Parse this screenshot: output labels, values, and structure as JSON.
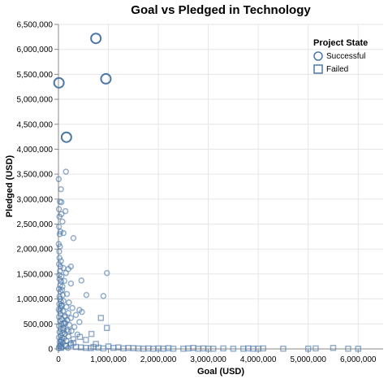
{
  "chart_data": {
    "type": "scatter",
    "title": "Goal vs Pledged in Technology",
    "xlabel": "Goal (USD)",
    "ylabel": "Pledged (USD)",
    "xlim": [
      0,
      6500000
    ],
    "ylim": [
      0,
      6500000
    ],
    "x_ticks": [
      0,
      1000000,
      2000000,
      3000000,
      4000000,
      5000000,
      6000000
    ],
    "x_tick_labels": [
      "0",
      "1,000,000",
      "2,000,000",
      "3,000,000",
      "4,000,000",
      "5,000,000",
      "6,000,000"
    ],
    "y_ticks": [
      0,
      500000,
      1000000,
      1500000,
      2000000,
      2500000,
      3000000,
      3500000,
      4000000,
      4500000,
      5000000,
      5500000,
      6000000,
      6500000
    ],
    "y_tick_labels": [
      "0",
      "500,000",
      "1,000,000",
      "1,500,000",
      "2,000,000",
      "2,500,000",
      "3,000,000",
      "3,500,000",
      "4,000,000",
      "4,500,000",
      "5,000,000",
      "5,500,000",
      "6,000,000",
      "6,500,000"
    ],
    "grid": true,
    "legend": {
      "title": "Project State",
      "placement": "top-right",
      "items": [
        {
          "label": "Successful",
          "shape": "circle"
        },
        {
          "label": "Failed",
          "shape": "square"
        }
      ]
    },
    "color": "#4c78a8",
    "series": [
      {
        "name": "Successful",
        "shape": "circle",
        "points": [
          {
            "x": 750000,
            "y": 6220000,
            "size": "large"
          },
          {
            "x": 10000,
            "y": 5330000,
            "size": "large"
          },
          {
            "x": 950000,
            "y": 5410000,
            "size": "large"
          },
          {
            "x": 160000,
            "y": 4240000,
            "size": "large"
          },
          {
            "x": 150000,
            "y": 3550000
          },
          {
            "x": 5000,
            "y": 3400000
          },
          {
            "x": 50000,
            "y": 3200000
          },
          {
            "x": 30000,
            "y": 2950000
          },
          {
            "x": 60000,
            "y": 2940000
          },
          {
            "x": 10000,
            "y": 2800000
          },
          {
            "x": 140000,
            "y": 2760000
          },
          {
            "x": 60000,
            "y": 2700000
          },
          {
            "x": 20000,
            "y": 2650000
          },
          {
            "x": 80000,
            "y": 2550000
          },
          {
            "x": 10000,
            "y": 2450000
          },
          {
            "x": 40000,
            "y": 2350000
          },
          {
            "x": 100000,
            "y": 2320000
          },
          {
            "x": 25000,
            "y": 2300000
          },
          {
            "x": 300000,
            "y": 2220000
          },
          {
            "x": 5000,
            "y": 2100000
          },
          {
            "x": 30000,
            "y": 2050000
          },
          {
            "x": 15000,
            "y": 1950000
          },
          {
            "x": 20000,
            "y": 1820000
          },
          {
            "x": 50000,
            "y": 1760000
          },
          {
            "x": 10000,
            "y": 1700000
          },
          {
            "x": 40000,
            "y": 1650000
          },
          {
            "x": 100000,
            "y": 1620000
          },
          {
            "x": 250000,
            "y": 1650000
          },
          {
            "x": 200000,
            "y": 1600000
          },
          {
            "x": 30000,
            "y": 1560000
          },
          {
            "x": 150000,
            "y": 1520000
          },
          {
            "x": 970000,
            "y": 1520000
          },
          {
            "x": 60000,
            "y": 1450000
          },
          {
            "x": 20000,
            "y": 1400000
          },
          {
            "x": 120000,
            "y": 1360000
          },
          {
            "x": 460000,
            "y": 1370000
          },
          {
            "x": 250000,
            "y": 1310000
          },
          {
            "x": 80000,
            "y": 1250000
          },
          {
            "x": 10000,
            "y": 1200000
          },
          {
            "x": 40000,
            "y": 1150000
          },
          {
            "x": 170000,
            "y": 1100000
          },
          {
            "x": 560000,
            "y": 1080000
          },
          {
            "x": 900000,
            "y": 1060000
          },
          {
            "x": 30000,
            "y": 1000000
          },
          {
            "x": 100000,
            "y": 960000
          },
          {
            "x": 210000,
            "y": 930000
          },
          {
            "x": 15000,
            "y": 900000
          },
          {
            "x": 60000,
            "y": 860000
          },
          {
            "x": 160000,
            "y": 840000
          },
          {
            "x": 280000,
            "y": 820000
          },
          {
            "x": 5000,
            "y": 790000
          },
          {
            "x": 420000,
            "y": 780000
          },
          {
            "x": 90000,
            "y": 760000
          },
          {
            "x": 470000,
            "y": 740000
          },
          {
            "x": 200000,
            "y": 720000
          },
          {
            "x": 40000,
            "y": 700000
          },
          {
            "x": 350000,
            "y": 680000
          },
          {
            "x": 120000,
            "y": 660000
          },
          {
            "x": 10000,
            "y": 640000
          },
          {
            "x": 250000,
            "y": 620000
          },
          {
            "x": 70000,
            "y": 600000
          },
          {
            "x": 180000,
            "y": 580000
          },
          {
            "x": 30000,
            "y": 560000
          },
          {
            "x": 420000,
            "y": 540000
          },
          {
            "x": 140000,
            "y": 520000
          },
          {
            "x": 60000,
            "y": 500000
          },
          {
            "x": 220000,
            "y": 480000
          },
          {
            "x": 10000,
            "y": 460000
          },
          {
            "x": 320000,
            "y": 440000
          },
          {
            "x": 100000,
            "y": 420000
          },
          {
            "x": 45000,
            "y": 400000
          },
          {
            "x": 170000,
            "y": 380000
          },
          {
            "x": 260000,
            "y": 360000
          },
          {
            "x": 20000,
            "y": 340000
          },
          {
            "x": 80000,
            "y": 320000
          },
          {
            "x": 130000,
            "y": 300000
          },
          {
            "x": 380000,
            "y": 290000
          },
          {
            "x": 50000,
            "y": 270000
          },
          {
            "x": 200000,
            "y": 250000
          },
          {
            "x": 10000,
            "y": 230000
          },
          {
            "x": 110000,
            "y": 210000
          },
          {
            "x": 300000,
            "y": 200000
          },
          {
            "x": 60000,
            "y": 180000
          },
          {
            "x": 160000,
            "y": 160000
          },
          {
            "x": 25000,
            "y": 140000
          },
          {
            "x": 90000,
            "y": 120000
          },
          {
            "x": 240000,
            "y": 110000
          },
          {
            "x": 40000,
            "y": 90000
          },
          {
            "x": 140000,
            "y": 70000
          },
          {
            "x": 15000,
            "y": 50000
          },
          {
            "x": 70000,
            "y": 30000
          },
          {
            "x": 190000,
            "y": 20000
          },
          {
            "x": 5000,
            "y": 10000
          },
          {
            "x": 35000,
            "y": 60000
          },
          {
            "x": 55000,
            "y": 150000
          },
          {
            "x": 75000,
            "y": 220000
          },
          {
            "x": 95000,
            "y": 380000
          },
          {
            "x": 115000,
            "y": 520000
          },
          {
            "x": 135000,
            "y": 640000
          },
          {
            "x": 25000,
            "y": 760000
          },
          {
            "x": 45000,
            "y": 820000
          },
          {
            "x": 65000,
            "y": 880000
          },
          {
            "x": 85000,
            "y": 1080000
          },
          {
            "x": 35000,
            "y": 1280000
          },
          {
            "x": 15000,
            "y": 1480000
          },
          {
            "x": 55000,
            "y": 1350000
          },
          {
            "x": 75000,
            "y": 1180000
          },
          {
            "x": 20000,
            "y": 1050000
          },
          {
            "x": 50000,
            "y": 950000
          }
        ]
      },
      {
        "name": "Failed",
        "shape": "square",
        "points": [
          {
            "x": 970000,
            "y": 420000
          },
          {
            "x": 850000,
            "y": 620000
          },
          {
            "x": 660000,
            "y": 300000
          },
          {
            "x": 430000,
            "y": 240000
          },
          {
            "x": 550000,
            "y": 180000
          },
          {
            "x": 200000,
            "y": 350000
          },
          {
            "x": 100000,
            "y": 500000
          },
          {
            "x": 300000,
            "y": 120000
          },
          {
            "x": 750000,
            "y": 100000
          },
          {
            "x": 1000000,
            "y": 50000
          },
          {
            "x": 1200000,
            "y": 30000
          },
          {
            "x": 1400000,
            "y": 20000
          },
          {
            "x": 1500000,
            "y": 15000
          },
          {
            "x": 1600000,
            "y": 10000
          },
          {
            "x": 1700000,
            "y": 5000
          },
          {
            "x": 1800000,
            "y": 10000
          },
          {
            "x": 1900000,
            "y": 5000
          },
          {
            "x": 2000000,
            "y": 10000
          },
          {
            "x": 2100000,
            "y": 5000
          },
          {
            "x": 2200000,
            "y": 15000
          },
          {
            "x": 2300000,
            "y": 5000
          },
          {
            "x": 2500000,
            "y": 5000
          },
          {
            "x": 2600000,
            "y": 10000
          },
          {
            "x": 2700000,
            "y": 20000
          },
          {
            "x": 2800000,
            "y": 5000
          },
          {
            "x": 2900000,
            "y": 10000
          },
          {
            "x": 3000000,
            "y": 5000
          },
          {
            "x": 3100000,
            "y": 5000
          },
          {
            "x": 3300000,
            "y": 10000
          },
          {
            "x": 3500000,
            "y": 5000
          },
          {
            "x": 3700000,
            "y": 5000
          },
          {
            "x": 3800000,
            "y": 10000
          },
          {
            "x": 3900000,
            "y": 5000
          },
          {
            "x": 4000000,
            "y": 5000
          },
          {
            "x": 4100000,
            "y": 10000
          },
          {
            "x": 4500000,
            "y": 5000
          },
          {
            "x": 5000000,
            "y": 5000
          },
          {
            "x": 5150000,
            "y": 10000
          },
          {
            "x": 5500000,
            "y": 20000
          },
          {
            "x": 5800000,
            "y": 5000
          },
          {
            "x": 6000000,
            "y": 5000
          },
          {
            "x": 50000,
            "y": 20000
          },
          {
            "x": 150000,
            "y": 60000
          },
          {
            "x": 250000,
            "y": 80000
          },
          {
            "x": 350000,
            "y": 40000
          },
          {
            "x": 450000,
            "y": 30000
          },
          {
            "x": 550000,
            "y": 20000
          },
          {
            "x": 650000,
            "y": 15000
          },
          {
            "x": 700000,
            "y": 40000
          },
          {
            "x": 800000,
            "y": 25000
          },
          {
            "x": 900000,
            "y": 10000
          },
          {
            "x": 1100000,
            "y": 20000
          },
          {
            "x": 1300000,
            "y": 10000
          }
        ]
      }
    ]
  }
}
